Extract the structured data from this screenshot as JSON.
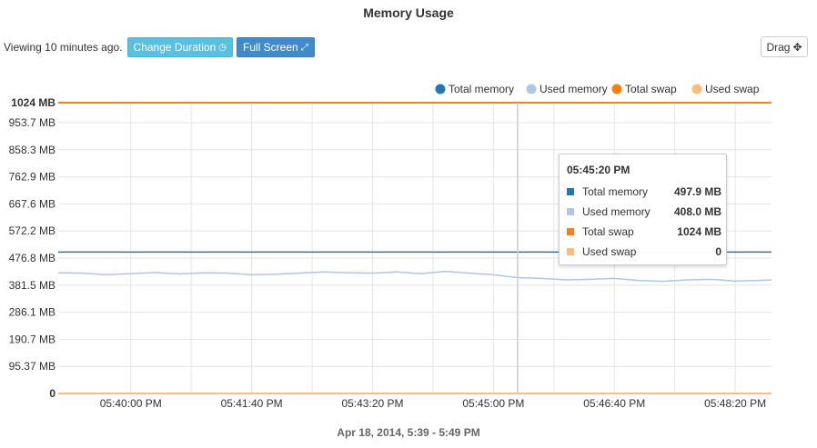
{
  "title": "Memory Usage",
  "toolbar": {
    "viewing_text": "Viewing 10 minutes ago.",
    "change_duration_label": "Change Duration",
    "change_duration_icon": "clock-icon",
    "full_screen_label": "Full Screen",
    "full_screen_icon": "expand-arrows-icon",
    "drag_label": "Drag",
    "drag_icon": "move-icon"
  },
  "legend": [
    {
      "label": "Total memory",
      "color": "#1f77b4"
    },
    {
      "label": "Used memory",
      "color": "#aec7e8"
    },
    {
      "label": "Total swap",
      "color": "#ff7f0e"
    },
    {
      "label": "Used swap",
      "color": "#ffbb78"
    }
  ],
  "tooltip": {
    "time": "05:45:20 PM",
    "rows": [
      {
        "key": "Total memory",
        "value": "497.9 MB",
        "color": "#1f77b4"
      },
      {
        "key": "Used memory",
        "value": "408.0 MB",
        "color": "#aec7e8"
      },
      {
        "key": "Total swap",
        "value": "1024 MB",
        "color": "#ff7f0e"
      },
      {
        "key": "Used swap",
        "value": "0",
        "color": "#ffbb78"
      }
    ]
  },
  "footer": "Apr 18, 2014, 5:39 - 5:49 PM",
  "chart_data": {
    "type": "line",
    "x_unit": "time",
    "xlim": [
      "05:39:00 PM",
      "05:48:50 PM"
    ],
    "ylim": [
      0,
      1024
    ],
    "y_ticks": [
      {
        "label": "1024 MB",
        "value": 1024,
        "bold": true
      },
      {
        "label": "953.7 MB",
        "value": 953.7
      },
      {
        "label": "858.3 MB",
        "value": 858.3
      },
      {
        "label": "762.9 MB",
        "value": 762.9
      },
      {
        "label": "667.6 MB",
        "value": 667.6
      },
      {
        "label": "572.2 MB",
        "value": 572.2
      },
      {
        "label": "476.8 MB",
        "value": 476.8
      },
      {
        "label": "381.5 MB",
        "value": 381.5
      },
      {
        "label": "286.1 MB",
        "value": 286.1
      },
      {
        "label": "190.7 MB",
        "value": 190.7
      },
      {
        "label": "95.37 MB",
        "value": 95.37
      },
      {
        "label": "0",
        "value": 0,
        "bold": true
      }
    ],
    "x_ticks": [
      "05:40:00 PM",
      "05:41:40 PM",
      "05:43:20 PM",
      "05:45:00 PM",
      "05:46:40 PM",
      "05:48:20 PM"
    ],
    "x_ticks_minor": [
      "05:40:50 PM",
      "05:42:30 PM",
      "05:44:10 PM",
      "05:45:50 PM",
      "05:47:30 PM"
    ],
    "hover_x": "05:45:20 PM",
    "grid": true,
    "legend_position": "top-right",
    "series": [
      {
        "name": "Total memory",
        "color": "#1f77b4",
        "points": [
          [
            "05:39:00 PM",
            497.9
          ],
          [
            "05:48:50 PM",
            497.9
          ]
        ]
      },
      {
        "name": "Used memory",
        "color": "#aec7e8",
        "points": [
          [
            "05:39:00 PM",
            425
          ],
          [
            "05:39:20 PM",
            424
          ],
          [
            "05:39:40 PM",
            418
          ],
          [
            "05:40:00 PM",
            422
          ],
          [
            "05:40:20 PM",
            426
          ],
          [
            "05:40:40 PM",
            421
          ],
          [
            "05:41:00 PM",
            425
          ],
          [
            "05:41:20 PM",
            424
          ],
          [
            "05:41:40 PM",
            418
          ],
          [
            "05:42:00 PM",
            420
          ],
          [
            "05:42:20 PM",
            424
          ],
          [
            "05:42:40 PM",
            428
          ],
          [
            "05:43:00 PM",
            425
          ],
          [
            "05:43:20 PM",
            424
          ],
          [
            "05:43:40 PM",
            428
          ],
          [
            "05:44:00 PM",
            422
          ],
          [
            "05:44:20 PM",
            430
          ],
          [
            "05:44:40 PM",
            424
          ],
          [
            "05:45:00 PM",
            418
          ],
          [
            "05:45:20 PM",
            408
          ],
          [
            "05:45:40 PM",
            405
          ],
          [
            "05:46:00 PM",
            400
          ],
          [
            "05:46:20 PM",
            402
          ],
          [
            "05:46:40 PM",
            405
          ],
          [
            "05:47:00 PM",
            398
          ],
          [
            "05:47:20 PM",
            395
          ],
          [
            "05:47:40 PM",
            400
          ],
          [
            "05:48:00 PM",
            402
          ],
          [
            "05:48:20 PM",
            396
          ],
          [
            "05:48:40 PM",
            398
          ],
          [
            "05:48:50 PM",
            400
          ]
        ]
      },
      {
        "name": "Total swap",
        "color": "#ff7f0e",
        "points": [
          [
            "05:39:00 PM",
            1024
          ],
          [
            "05:48:50 PM",
            1024
          ]
        ]
      },
      {
        "name": "Used swap",
        "color": "#ffbb78",
        "points": [
          [
            "05:39:00 PM",
            0
          ],
          [
            "05:48:50 PM",
            0
          ]
        ]
      }
    ]
  }
}
